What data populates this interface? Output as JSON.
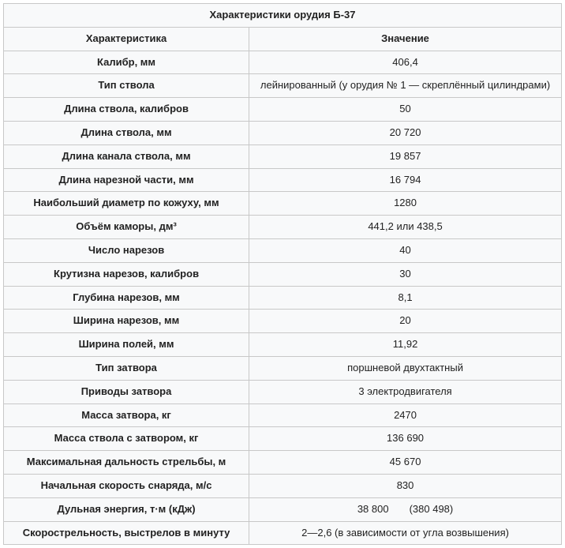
{
  "title": "Характеристики орудия Б-37",
  "columns": [
    "Характеристика",
    "Значение"
  ],
  "rows": [
    {
      "c": "Калибр, мм",
      "v": "406,4"
    },
    {
      "c": "Тип ствола",
      "v": "лейнированный (у орудия № 1 — скреплённый цилиндрами)"
    },
    {
      "c": "Длина ствола, калибров",
      "v": "50"
    },
    {
      "c": "Длина ствола, мм",
      "v": "20 720"
    },
    {
      "c": "Длина канала ствола, мм",
      "v": "19 857"
    },
    {
      "c": "Длина нарезной части, мм",
      "v": "16 794"
    },
    {
      "c": "Наибольший диаметр по кожуху, мм",
      "v": "1280"
    },
    {
      "c": "Объём каморы, дм³",
      "v": "441,2 или 438,5"
    },
    {
      "c": "Число нарезов",
      "v": "40"
    },
    {
      "c": "Крутизна нарезов, калибров",
      "v": "30"
    },
    {
      "c": "Глубина нарезов, мм",
      "v": "8,1"
    },
    {
      "c": "Ширина нарезов, мм",
      "v": "20"
    },
    {
      "c": "Ширина полей, мм",
      "v": "11,92"
    },
    {
      "c": "Тип затвора",
      "v": "поршневой двухтактный"
    },
    {
      "c": "Приводы затвора",
      "v": "3 электродвигателя"
    },
    {
      "c": "Масса затвора, кг",
      "v": "2470"
    },
    {
      "c": "Масса ствола с затвором, кг",
      "v": "136 690"
    },
    {
      "c": "Максимальная дальность стрельбы, м",
      "v": "45 670"
    },
    {
      "c": "Начальная скорость снаряда, м/с",
      "v": "830"
    },
    {
      "c": "Дульная энергия, т·м (кДж)",
      "v": "38 800  (380 498)"
    },
    {
      "c": "Скорострельность, выстрелов в минуту",
      "v": "2—2,6 (в зависимости от угла возвышения)"
    }
  ],
  "style": {
    "background_color": "#f8f9fa",
    "border_color": "#c8c8c8",
    "text_color": "#222222",
    "font_size_pt": 10,
    "header_font_weight": "bold",
    "char_col_font_weight": "bold",
    "val_col_font_weight": "normal",
    "char_col_width_pct": 44,
    "val_col_width_pct": 56,
    "text_align": "center"
  }
}
